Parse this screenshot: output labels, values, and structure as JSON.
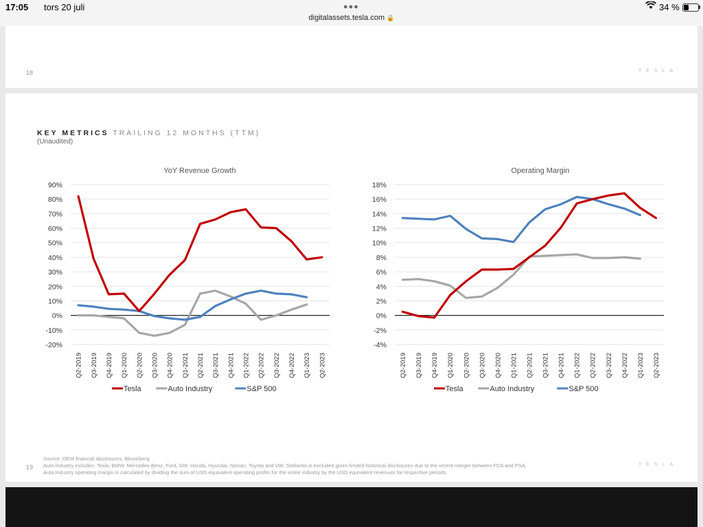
{
  "status_bar": {
    "time": "17:05",
    "date": "tors 20 juli",
    "url": "digitalassets.tesla.com",
    "battery": "34 %",
    "battery_level": 0.34
  },
  "slide_top": {
    "page_number": "18",
    "brand": "TESLA"
  },
  "slide_main": {
    "page_number": "19",
    "brand": "TESLA",
    "title_strong": "KEY METRICS",
    "title_light": "TRAILING 12 MONTHS (TTM)",
    "subtitle": "(Unaudited)",
    "footnotes": [
      "Source: OEM financial disclosures, Bloomberg",
      "Auto Industry includes: Tesla, BMW, Mercedes-Benz, Ford, GM, Honda, Hyundai, Nissan, Toyota and VW. Stellantis is excluded given limited historical disclosures due to the recent merger between FCA and PSA.",
      "Auto Industry operating margin is calculated by dividing the sum of USD equivalent operating profits for the entire industry by the USD equivalent revenues for respective periods."
    ]
  },
  "chart_data": [
    {
      "type": "line",
      "title": "YoY Revenue Growth",
      "x": [
        "Q2-2019",
        "Q3-2019",
        "Q4-2019",
        "Q1-2020",
        "Q2-2020",
        "Q3-2020",
        "Q4-2020",
        "Q1-2021",
        "Q2-2021",
        "Q3-2021",
        "Q4-2021",
        "Q1-2022",
        "Q2-2022",
        "Q3-2022",
        "Q4-2022",
        "Q1-2023",
        "Q2-2023"
      ],
      "yticks": [
        "90%",
        "80%",
        "70%",
        "60%",
        "50%",
        "40%",
        "30%",
        "20%",
        "10%",
        "0%",
        "-10%",
        "-20%"
      ],
      "ylim": [
        -20,
        90
      ],
      "series": [
        {
          "name": "Tesla",
          "color": "#c00000",
          "values": [
            82,
            39,
            14.5,
            15,
            3,
            15,
            28,
            38,
            63,
            66,
            71,
            73,
            60.5,
            60,
            51,
            38.5,
            40
          ]
        },
        {
          "name": "Auto Industry",
          "color": "#a6a6a6",
          "values": [
            0,
            0,
            -1,
            -2,
            -12,
            -14,
            -12,
            -6.5,
            15,
            17,
            13,
            8,
            -3,
            0,
            4,
            7.5,
            null
          ]
        },
        {
          "name": "S&P 500",
          "color": "#4f81bd",
          "values": [
            7,
            6,
            4.5,
            4,
            3,
            -0.5,
            -2,
            -3,
            -1,
            6.5,
            11,
            15,
            17,
            15,
            14.5,
            12.5,
            null
          ]
        }
      ]
    },
    {
      "type": "line",
      "title": "Operating Margin",
      "x": [
        "Q2-2019",
        "Q3-2019",
        "Q4-2019",
        "Q1-2020",
        "Q2-2020",
        "Q3-2020",
        "Q4-2020",
        "Q1-2021",
        "Q2-2021",
        "Q3-2021",
        "Q4-2021",
        "Q1-2022",
        "Q2-2022",
        "Q3-2022",
        "Q4-2022",
        "Q1-2023",
        "Q2-2023"
      ],
      "yticks": [
        "18%",
        "16%",
        "14%",
        "12%",
        "10%",
        "8%",
        "6%",
        "4%",
        "2%",
        "0%",
        "-2%",
        "-4%"
      ],
      "ylim": [
        -4,
        18
      ],
      "series": [
        {
          "name": "Tesla",
          "color": "#c00000",
          "values": [
            0.5,
            -0.1,
            -0.3,
            2.8,
            4.7,
            6.3,
            6.3,
            6.4,
            8.0,
            9.6,
            12.1,
            15.4,
            16.0,
            16.5,
            16.8,
            14.8,
            13.4
          ]
        },
        {
          "name": "Auto Industry",
          "color": "#a6a6a6",
          "values": [
            4.9,
            5.0,
            4.7,
            4.1,
            2.4,
            2.6,
            3.8,
            5.6,
            8.1,
            8.2,
            8.3,
            8.4,
            7.9,
            7.9,
            8.0,
            7.8,
            null
          ]
        },
        {
          "name": "S&P 500",
          "color": "#4f81bd",
          "values": [
            13.4,
            13.3,
            13.2,
            13.7,
            11.9,
            10.6,
            10.5,
            10.1,
            12.8,
            14.6,
            15.3,
            16.3,
            16.0,
            15.3,
            14.7,
            13.8,
            null
          ]
        }
      ]
    }
  ]
}
